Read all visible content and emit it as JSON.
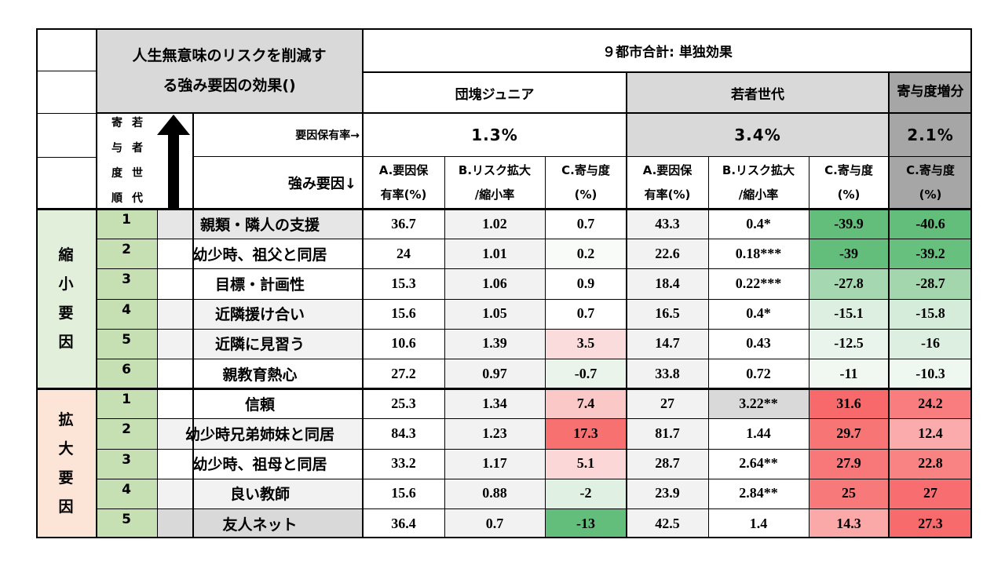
{
  "title": {
    "line1": "人生無意味のリスクを削減す",
    "line2": "る強み要因の効果()"
  },
  "scope": "９都市合計: 単独効果",
  "groups": {
    "dankai_junior": "団塊ジュニア",
    "young": "若者世代",
    "diff": "寄与度増分"
  },
  "vertical_label": {
    "col1": [
      "寄",
      "与",
      "度",
      "順"
    ],
    "col2": [
      "若",
      "者",
      "世",
      "代"
    ]
  },
  "arrow_label": "young-generation contribution rank",
  "retention_label": "要因保有率→",
  "factor_label": "強み要因↓",
  "retention_rates": {
    "dankai_junior": "1.3%",
    "young": "3.4%",
    "diff": "2.1%"
  },
  "column_headers": {
    "a": [
      "A.要因保",
      "有率(%)"
    ],
    "b": [
      "B.リスク拡大",
      "/縮小率"
    ],
    "c": [
      "C.寄与度",
      "(%)"
    ]
  },
  "blocks": [
    {
      "label": [
        "縮",
        "小",
        "要",
        "因"
      ],
      "color": "#e2efda",
      "rows": [
        {
          "rank": "1",
          "factor": "親類・隣人の支援",
          "a1": "36.7",
          "b1": "1.02",
          "c1": "0.7",
          "a2": "43.3",
          "b2": "0.4*",
          "c2": "-39.9",
          "d": "-40.6"
        },
        {
          "rank": "2",
          "factor": "幼少時、祖父と同居",
          "a1": "24",
          "b1": "1.01",
          "c1": "0.2",
          "a2": "22.6",
          "b2": "0.18***",
          "c2": "-39",
          "d": "-39.2"
        },
        {
          "rank": "3",
          "factor": "目標・計画性",
          "a1": "15.3",
          "b1": "1.06",
          "c1": "0.9",
          "a2": "18.4",
          "b2": "0.22***",
          "c2": "-27.8",
          "d": "-28.7"
        },
        {
          "rank": "4",
          "factor": "近隣援け合い",
          "a1": "15.6",
          "b1": "1.05",
          "c1": "0.7",
          "a2": "16.5",
          "b2": "0.4*",
          "c2": "-15.1",
          "d": "-15.8"
        },
        {
          "rank": "5",
          "factor": "近隣に見習う",
          "a1": "10.6",
          "b1": "1.39",
          "c1": "3.5",
          "a2": "14.7",
          "b2": "0.43",
          "c2": "-12.5",
          "d": "-16"
        },
        {
          "rank": "6",
          "factor": "親教育熱心",
          "a1": "27.2",
          "b1": "0.97",
          "c1": "-0.7",
          "a2": "33.8",
          "b2": "0.72",
          "c2": "-11",
          "d": "-10.3"
        }
      ]
    },
    {
      "label": [
        "拡",
        "大",
        "要",
        "因"
      ],
      "color": "#fce4d6",
      "rows": [
        {
          "rank": "1",
          "factor": "信頼",
          "a1": "25.3",
          "b1": "1.34",
          "c1": "7.4",
          "a2": "27",
          "b2": "3.22**",
          "c2": "31.6",
          "d": "24.2"
        },
        {
          "rank": "2",
          "factor": "幼少時兄弟姉妹と同居",
          "a1": "84.3",
          "b1": "1.23",
          "c1": "17.3",
          "a2": "81.7",
          "b2": "1.44",
          "c2": "29.7",
          "d": "12.4"
        },
        {
          "rank": "3",
          "factor": "幼少時、祖母と同居",
          "a1": "33.2",
          "b1": "1.17",
          "c1": "5.1",
          "a2": "28.7",
          "b2": "2.64**",
          "c2": "27.9",
          "d": "22.8"
        },
        {
          "rank": "4",
          "factor": "良い教師",
          "a1": "15.6",
          "b1": "0.88",
          "c1": "-2",
          "a2": "23.9",
          "b2": "2.84**",
          "c2": "25",
          "d": "27"
        },
        {
          "rank": "5",
          "factor": "友人ネット",
          "a1": "36.4",
          "b1": "0.7",
          "c1": "-13",
          "a2": "42.5",
          "b2": "1.4",
          "c2": "14.3",
          "d": "27.3"
        }
      ]
    }
  ],
  "cell_colors": {
    "rank_cells": "#c6e0b4",
    "title_bg": "#d9d9d9",
    "young_header_bg": "#d9d9d9",
    "diff_header_bg": "#a6a6a6",
    "c1": [
      "#ffffff",
      "#f8fbf8",
      "#ffffff",
      "#ffffff",
      "#fbdcdc",
      "#eaf4eb",
      "#fbc8c8",
      "#f87171",
      "#fbd7d7",
      "#e0f0e3",
      "#63be7b"
    ],
    "c2": [
      "#63be7b",
      "#63be7b",
      "#a5d7b0",
      "#dcefe0",
      "#e9f5ec",
      "#f1f8f2",
      "#f8696b",
      "#f87576",
      "#f87778",
      "#f8797a",
      "#fba8a9"
    ],
    "d": [
      "#63be7b",
      "#68c07f",
      "#a4d6ae",
      "#d6ecdb",
      "#dcefe1",
      "#eff7f1",
      "#f97d7e",
      "#fbabac",
      "#f98283",
      "#f86e70",
      "#f86b6d"
    ],
    "factor_shade": [
      "#e7e6e6",
      "#ffffff",
      "#ffffff",
      "#f2f2f2",
      "#f2f2f2",
      "#ffffff",
      "#ffffff",
      "#f2f2f2",
      "#ffffff",
      "#f2f2f2",
      "#d9d9d9"
    ],
    "b2_shade": [
      "#ffffff",
      "#ffffff",
      "#ffffff",
      "#ffffff",
      "#ffffff",
      "#ffffff",
      "#d9d9d9",
      "#ffffff",
      "#ffffff",
      "#ffffff",
      "#ffffff"
    ]
  }
}
